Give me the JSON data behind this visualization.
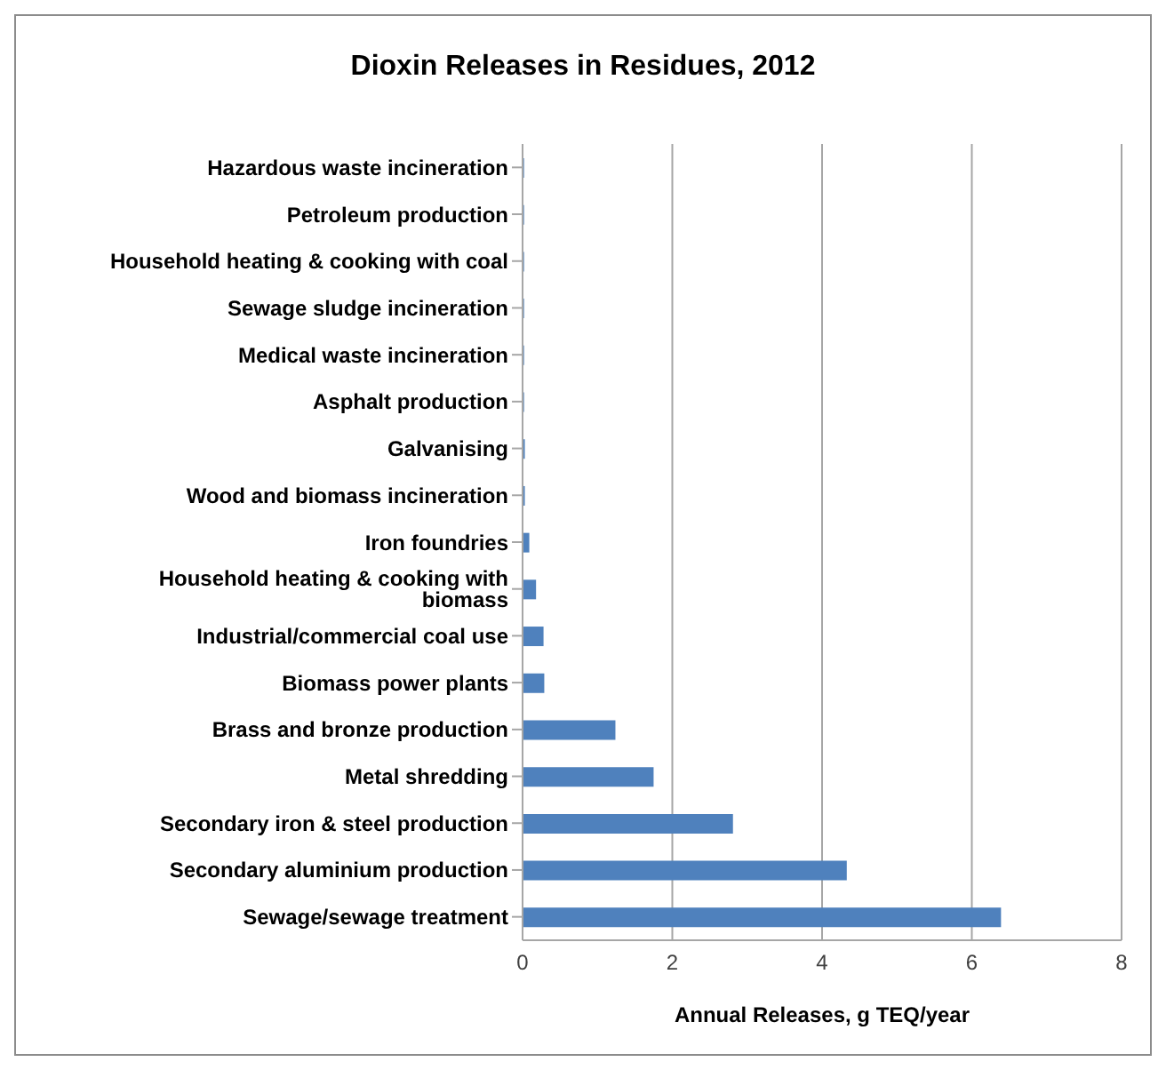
{
  "chart_data": {
    "type": "bar",
    "orientation": "horizontal",
    "title": "Dioxin Releases in Residues, 2012",
    "xlabel": "Annual Releases, g TEQ/year",
    "categories": [
      "Hazardous waste incineration",
      "Petroleum production",
      "Household heating & cooking  with coal",
      "Sewage sludge incineration",
      "Medical waste incineration",
      "Asphalt production",
      "Galvanising",
      "Wood and biomass incineration",
      "Iron foundries",
      "Household heating & cooking  with biomass",
      "Industrial/commercial coal use",
      "Biomass power plants",
      "Brass and bronze production",
      "Metal shredding",
      "Secondary iron & steel production",
      "Secondary aluminium production",
      "Sewage/sewage treatment"
    ],
    "values": [
      0.02,
      0.02,
      0.02,
      0.02,
      0.02,
      0.02,
      0.03,
      0.03,
      0.09,
      0.18,
      0.28,
      0.29,
      1.24,
      1.75,
      2.81,
      4.33,
      6.39
    ],
    "color": "#4f81bd",
    "xlim": [
      0,
      8
    ],
    "xticks": [
      0,
      2,
      4,
      6,
      8
    ],
    "grid": "x",
    "legend": false
  }
}
